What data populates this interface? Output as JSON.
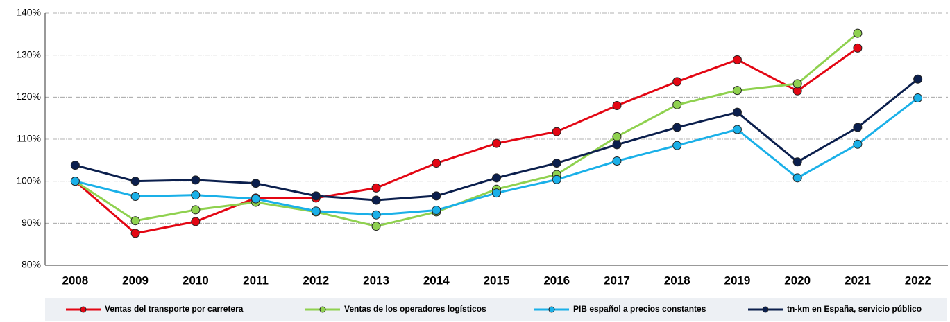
{
  "chart_data": {
    "type": "line",
    "categories": [
      "2008",
      "2009",
      "2010",
      "2011",
      "2012",
      "2013",
      "2014",
      "2015",
      "2016",
      "2017",
      "2018",
      "2019",
      "2020",
      "2021",
      "2022"
    ],
    "series": [
      {
        "name": "Ventas del transporte por carretera",
        "color": "#e30613",
        "values": [
          100,
          87.6,
          90.4,
          96,
          96,
          98.4,
          104.3,
          109,
          111.8,
          118,
          123.7,
          128.9,
          121.5,
          131.7,
          null
        ]
      },
      {
        "name": "Ventas de los operadores logísticos",
        "color": "#8fd14f",
        "values": [
          100,
          90.6,
          93.2,
          95,
          92.7,
          89.3,
          92.7,
          98.1,
          101.6,
          110.6,
          118.2,
          121.6,
          123.2,
          135.2,
          null
        ]
      },
      {
        "name": "PIB español a precios constantes",
        "color": "#1ab0e8",
        "values": [
          100,
          96.4,
          96.7,
          95.8,
          92.9,
          92,
          93.1,
          97.2,
          100.4,
          104.8,
          108.5,
          112.3,
          100.8,
          108.8,
          119.8
        ]
      },
      {
        "name": "tn-km en España, servicio público",
        "color": "#0b1f4d",
        "values": [
          103.8,
          100,
          100.3,
          99.5,
          96.5,
          95.5,
          96.5,
          100.8,
          104.3,
          108.7,
          112.8,
          116.4,
          104.6,
          112.8,
          124.3
        ]
      }
    ],
    "ylim": [
      80,
      140
    ],
    "yticks": [
      {
        "value": 80,
        "label": "80%"
      },
      {
        "value": 90,
        "label": "90%"
      },
      {
        "value": 100,
        "label": "100%"
      },
      {
        "value": 110,
        "label": "110%"
      },
      {
        "value": 120,
        "label": "120%"
      },
      {
        "value": 130,
        "label": "130%"
      },
      {
        "value": 140,
        "label": "140%"
      }
    ],
    "grid": true,
    "legend": "bottom"
  }
}
